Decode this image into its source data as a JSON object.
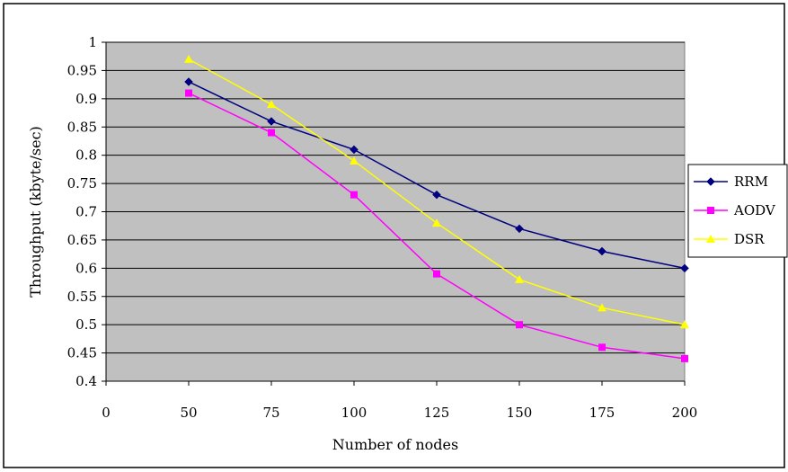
{
  "chart_data": {
    "type": "line",
    "title": "",
    "xlabel": "Number of nodes",
    "ylabel": "Throughput (kbyte/sec)",
    "x_ticks": [
      "0",
      "50",
      "75",
      "100",
      "125",
      "150",
      "175",
      "200"
    ],
    "x": [
      50,
      75,
      100,
      125,
      150,
      175,
      200
    ],
    "y_ticks": [
      "0.4",
      "0.45",
      "0.5",
      "0.55",
      "0.6",
      "0.65",
      "0.7",
      "0.75",
      "0.8",
      "0.85",
      "0.9",
      "0.95",
      "1"
    ],
    "ylim": [
      0.4,
      1.0
    ],
    "grid": "horizontal",
    "legend_position": "right",
    "plot_background": "#C0C0C0",
    "series": [
      {
        "name": "RRM",
        "color": "#000080",
        "marker": "diamond",
        "values": [
          0.93,
          0.86,
          0.81,
          0.73,
          0.67,
          0.63,
          0.6
        ]
      },
      {
        "name": "AODV",
        "color": "#FF00FF",
        "marker": "square",
        "values": [
          0.91,
          0.84,
          0.73,
          0.59,
          0.5,
          0.46,
          0.44
        ]
      },
      {
        "name": "DSR",
        "color": "#FFFF00",
        "marker": "triangle",
        "values": [
          0.97,
          0.89,
          0.79,
          0.68,
          0.58,
          0.53,
          0.5
        ]
      }
    ]
  }
}
